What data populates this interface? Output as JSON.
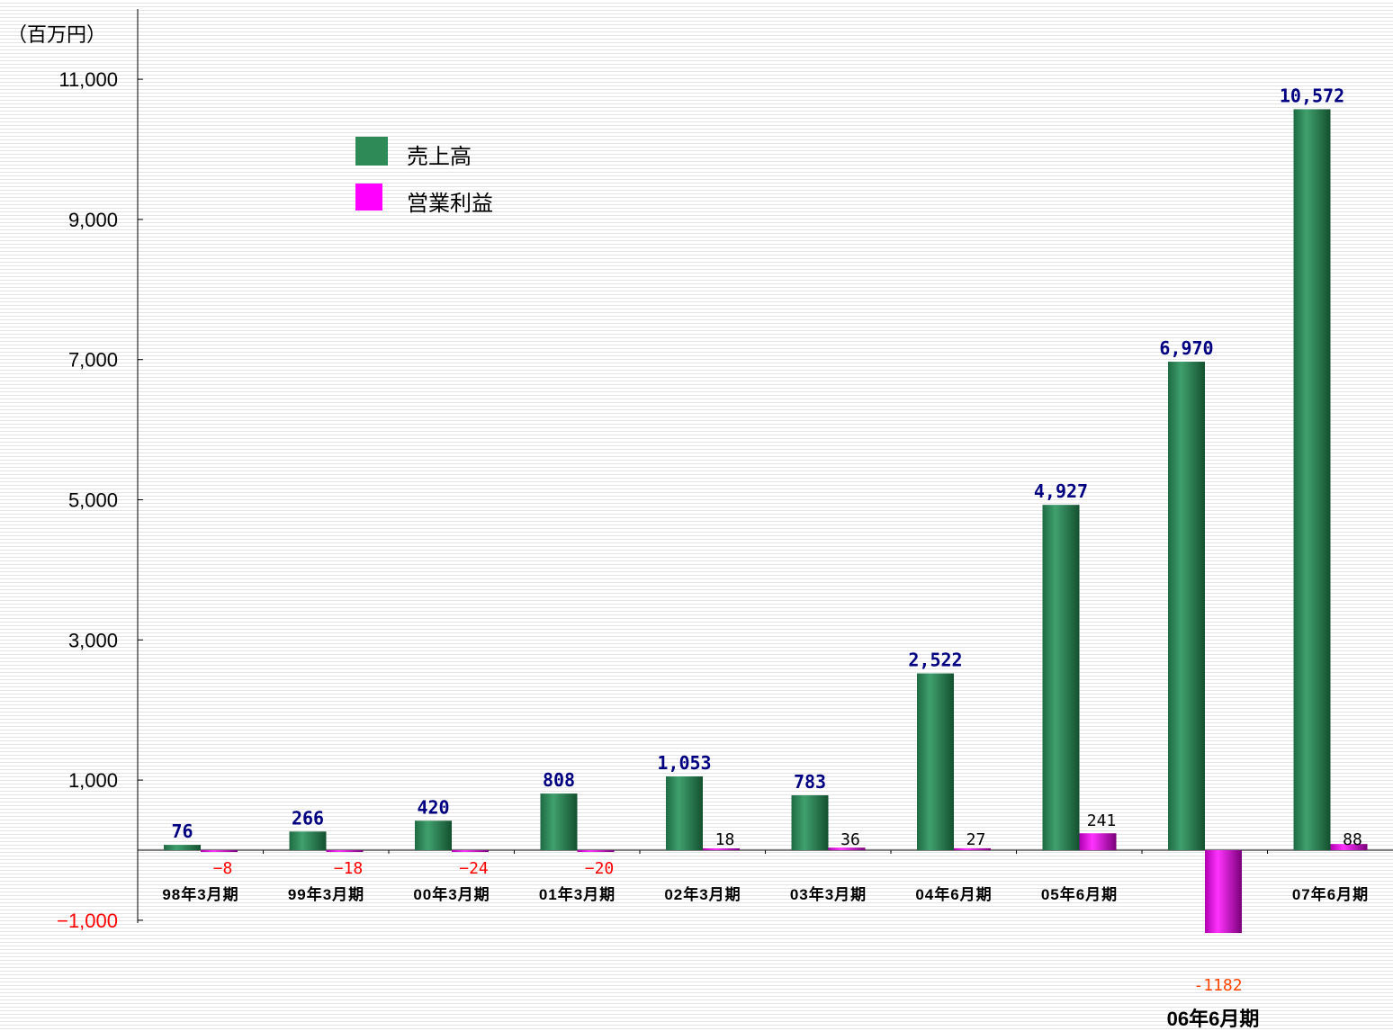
{
  "chart_data": {
    "type": "bar",
    "unit_label": "（百万円）",
    "categories": [
      "98年3月期",
      "99年3月期",
      "00年3月期",
      "01年3月期",
      "02年3月期",
      "03年3月期",
      "04年6月期",
      "05年6月期",
      "06年6月期",
      "07年6月期"
    ],
    "series": [
      {
        "name": "売上高",
        "color": "#2e8b57",
        "values": [
          76,
          266,
          420,
          808,
          1053,
          783,
          2522,
          4927,
          6970,
          10572
        ],
        "labels": [
          "76",
          "266",
          "420",
          "808",
          "1,053",
          "783",
          "2,522",
          "4,927",
          "6,970",
          "10,572"
        ]
      },
      {
        "name": "営業利益",
        "color": "#ff00ff",
        "values": [
          -8,
          -18,
          -24,
          -20,
          18,
          36,
          27,
          241,
          -1182,
          88
        ],
        "labels": [
          "−8",
          "−18",
          "−24",
          "−20",
          "18",
          "36",
          "27",
          "241",
          "-1182",
          "88"
        ]
      }
    ],
    "y_ticks": [
      11000,
      9000,
      7000,
      5000,
      3000,
      1000,
      -1000
    ],
    "y_tick_labels": [
      "11,000",
      "9,000",
      "7,000",
      "5,000",
      "3,000",
      "1,000",
      "−1,000"
    ],
    "ylim": [
      -1000,
      11000
    ],
    "grid": false,
    "legend_position": "upper-left"
  }
}
